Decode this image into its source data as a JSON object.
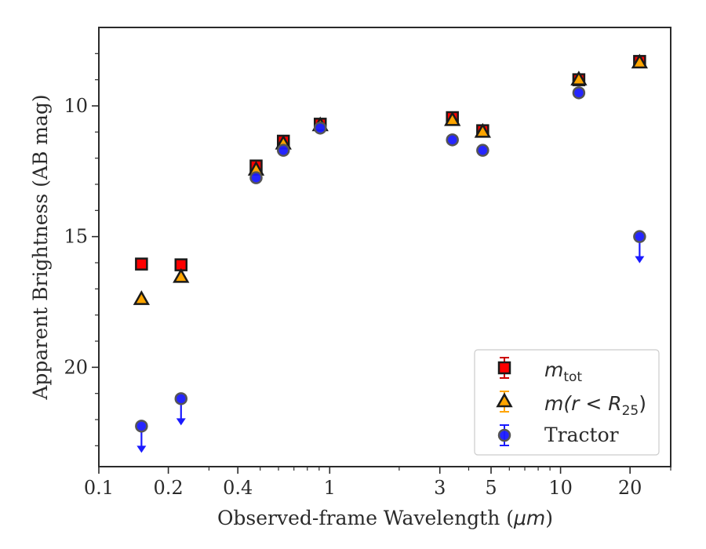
{
  "chart_data": {
    "type": "scatter",
    "xlabel_prefix": "Observed-frame Wavelength (",
    "xlabel_unit": "μm",
    "xlabel_suffix": ")",
    "ylabel": "Apparent Brightness (AB mag)",
    "xscale": "log",
    "xlim": [
      0.1,
      30
    ],
    "ylim": [
      23.8,
      7.0
    ],
    "y_inverted": true,
    "grid": false,
    "legend_position": "lower-right",
    "x_ticks": [
      0.1,
      0.2,
      0.4,
      1,
      3,
      5,
      10,
      20
    ],
    "x_tick_labels": [
      "0.1",
      "0.2",
      "0.4",
      "1",
      "3",
      "5",
      "10",
      "20"
    ],
    "y_ticks": [
      10,
      15,
      20
    ],
    "y_tick_labels": [
      "10",
      "15",
      "20"
    ],
    "series": [
      {
        "key": "mtot",
        "name_base": "m",
        "name_sub": "tot",
        "marker": "square",
        "color": "#ff0000",
        "edge_color": "#1a1a1a",
        "x": [
          0.153,
          0.227,
          0.48,
          0.63,
          0.91,
          3.4,
          4.6,
          12.0,
          22.0
        ],
        "y": [
          16.05,
          16.08,
          12.3,
          11.35,
          10.7,
          10.45,
          10.95,
          9.0,
          8.3
        ]
      },
      {
        "key": "mr25",
        "name_full": "m(r < R25)",
        "name_pre": "m(r < R",
        "name_sub": "25",
        "name_post": ")",
        "marker": "triangle",
        "color": "#ffa500",
        "edge_color": "#1a1a1a",
        "x": [
          0.153,
          0.227,
          0.48,
          0.63,
          0.91,
          3.4,
          4.6,
          12.0,
          22.0
        ],
        "y": [
          17.4,
          16.55,
          12.45,
          11.45,
          10.75,
          10.55,
          11.0,
          9.0,
          8.35
        ]
      },
      {
        "key": "tractor",
        "name": "Tractor",
        "marker": "circle",
        "color": "#1a1aff",
        "edge_color": "#555555",
        "x": [
          0.153,
          0.227,
          0.48,
          0.63,
          0.91,
          3.4,
          4.6,
          12.0,
          22.0
        ],
        "y": [
          22.25,
          21.2,
          12.75,
          11.7,
          10.85,
          11.3,
          11.7,
          9.5,
          15.0
        ],
        "upper_limit": [
          true,
          true,
          false,
          false,
          false,
          false,
          false,
          false,
          true
        ]
      }
    ]
  }
}
